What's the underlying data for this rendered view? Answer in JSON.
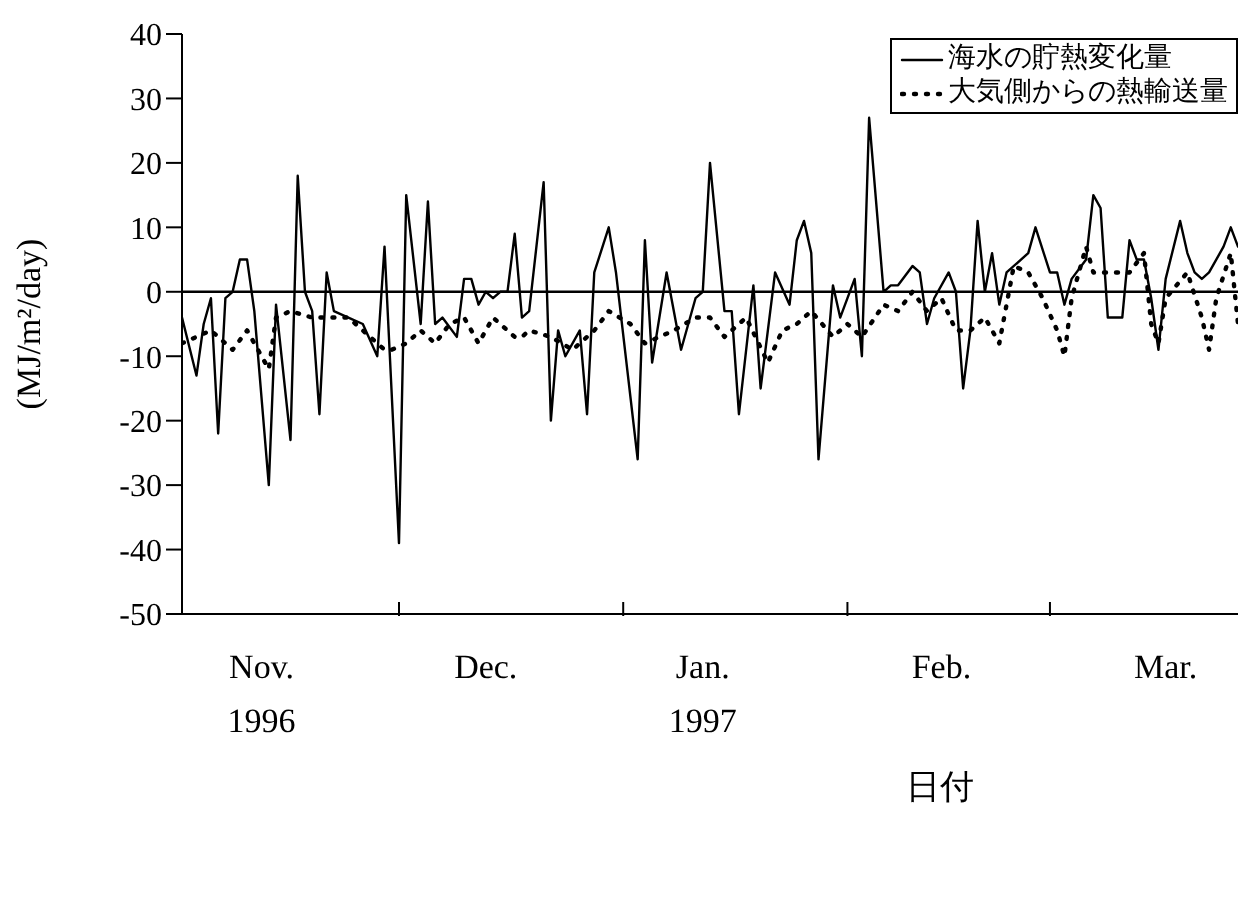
{
  "chart_data": {
    "type": "line",
    "xlabel": "日付",
    "ylabel": "(MJ/m²/day)",
    "xlim": [
      "1996-11-01",
      "1997-03-27"
    ],
    "xticks": [
      {
        "value": "1996-11-12",
        "label": "Nov.\n1996"
      },
      {
        "value": "1996-12-01",
        "label": null
      },
      {
        "value": "1996-12-13",
        "label": "Dec."
      },
      {
        "value": "1997-01-01",
        "label": null
      },
      {
        "value": "1997-01-12",
        "label": "Jan.\n1997"
      },
      {
        "value": "1997-02-01",
        "label": null
      },
      {
        "value": "1997-02-14",
        "label": "Feb."
      },
      {
        "value": "1997-03-01",
        "label": null
      },
      {
        "value": "1997-03-17",
        "label": "Mar."
      }
    ],
    "ylim": [
      -50,
      40
    ],
    "yticks": [
      -50,
      -40,
      -30,
      -20,
      -10,
      0,
      10,
      20,
      30,
      40
    ],
    "legend": "top right",
    "marker": "none",
    "ref_lines": [
      {
        "axis": "y",
        "value": 0,
        "color": "#000000",
        "line_style": "solid"
      }
    ],
    "series": [
      {
        "name": "海水の貯熱変化量",
        "color": "#000000",
        "line_style": "solid",
        "x": [
          "1996-11-01",
          "1996-11-03",
          "1996-11-04",
          "1996-11-05",
          "1996-11-06",
          "1996-11-07",
          "1996-11-08",
          "1996-11-09",
          "1996-11-10",
          "1996-11-11",
          "1996-11-13",
          "1996-11-14",
          "1996-11-16",
          "1996-11-17",
          "1996-11-18",
          "1996-11-19",
          "1996-11-20",
          "1996-11-21",
          "1996-11-22",
          "1996-11-24",
          "1996-11-26",
          "1996-11-28",
          "1996-11-29",
          "1996-12-01",
          "1996-12-02",
          "1996-12-04",
          "1996-12-05",
          "1996-12-06",
          "1996-12-07",
          "1996-12-09",
          "1996-12-10",
          "1996-12-11",
          "1996-12-12",
          "1996-12-13",
          "1996-12-14",
          "1996-12-15",
          "1996-12-16",
          "1996-12-17",
          "1996-12-18",
          "1996-12-19",
          "1996-12-21",
          "1996-12-22",
          "1996-12-23",
          "1996-12-24",
          "1996-12-26",
          "1996-12-27",
          "1996-12-28",
          "1996-12-30",
          "1996-12-31",
          "1997-01-03",
          "1997-01-04",
          "1997-01-05",
          "1997-01-07",
          "1997-01-09",
          "1997-01-11",
          "1997-01-12",
          "1997-01-13",
          "1997-01-15",
          "1997-01-16",
          "1997-01-17",
          "1997-01-19",
          "1997-01-20",
          "1997-01-22",
          "1997-01-24",
          "1997-01-25",
          "1997-01-26",
          "1997-01-27",
          "1997-01-28",
          "1997-01-30",
          "1997-01-31",
          "1997-02-02",
          "1997-02-03",
          "1997-02-04",
          "1997-02-06",
          "1997-02-07",
          "1997-02-08",
          "1997-02-10",
          "1997-02-11",
          "1997-02-12",
          "1997-02-13",
          "1997-02-15",
          "1997-02-16",
          "1997-02-17",
          "1997-02-18",
          "1997-02-19",
          "1997-02-20",
          "1997-02-21",
          "1997-02-22",
          "1997-02-23",
          "1997-02-26",
          "1997-02-27",
          "1997-03-01",
          "1997-03-02",
          "1997-03-03",
          "1997-03-04",
          "1997-03-06",
          "1997-03-07",
          "1997-03-08",
          "1997-03-09",
          "1997-03-11",
          "1997-03-12",
          "1997-03-13",
          "1997-03-14",
          "1997-03-15",
          "1997-03-16",
          "1997-03-17",
          "1997-03-19",
          "1997-03-20",
          "1997-03-21",
          "1997-03-22",
          "1997-03-23",
          "1997-03-25",
          "1997-03-26",
          "1997-03-27"
        ],
        "values": [
          -4,
          -13,
          -5,
          -1,
          -22,
          -1,
          0,
          5,
          5,
          -3,
          -30,
          -2,
          -23,
          18,
          0,
          -3,
          -19,
          3,
          -3,
          -4,
          -5,
          -10,
          7,
          -39,
          15,
          -5,
          14,
          -5,
          -4,
          -7,
          2,
          2,
          -2,
          0,
          -1,
          0,
          0,
          9,
          -4,
          -3,
          17,
          -20,
          -6,
          -10,
          -6,
          -19,
          3,
          10,
          3,
          -26,
          8,
          -11,
          3,
          -9,
          -1,
          0,
          20,
          -3,
          -3,
          -19,
          1,
          -15,
          3,
          -2,
          8,
          11,
          6,
          -26,
          1,
          -4,
          2,
          -10,
          27,
          0,
          1,
          1,
          4,
          3,
          -5,
          -1,
          3,
          0,
          -15,
          -6,
          11,
          0,
          6,
          -2,
          3,
          6,
          10,
          3,
          3,
          -2,
          2,
          5,
          15,
          13,
          -4,
          -4,
          8,
          5,
          5,
          -1,
          -9,
          2,
          11,
          6,
          3,
          2,
          3,
          7,
          10,
          7
        ]
      },
      {
        "name": "大気側からの熱輸送量",
        "color": "#000000",
        "line_style": "dotted",
        "x": [
          "1996-11-01",
          "1996-11-05",
          "1996-11-08",
          "1996-11-10",
          "1996-11-13",
          "1996-11-14",
          "1996-11-16",
          "1996-11-19",
          "1996-11-22",
          "1996-11-24",
          "1996-11-26",
          "1996-11-29",
          "1996-11-30",
          "1996-12-02",
          "1996-12-04",
          "1996-12-06",
          "1996-12-08",
          "1996-12-10",
          "1996-12-12",
          "1996-12-14",
          "1996-12-15",
          "1996-12-17",
          "1996-12-18",
          "1996-12-19",
          "1996-12-22",
          "1996-12-25",
          "1996-12-28",
          "1996-12-30",
          "1997-01-02",
          "1997-01-04",
          "1997-01-06",
          "1997-01-08",
          "1997-01-11",
          "1997-01-13",
          "1997-01-15",
          "1997-01-18",
          "1997-01-21",
          "1997-01-23",
          "1997-01-25",
          "1997-01-27",
          "1997-01-30",
          "1997-02-01",
          "1997-02-03",
          "1997-02-06",
          "1997-02-08",
          "1997-02-10",
          "1997-02-12",
          "1997-02-14",
          "1997-02-16",
          "1997-02-18",
          "1997-02-20",
          "1997-02-22",
          "1997-02-24",
          "1997-02-26",
          "1997-02-28",
          "1997-03-02",
          "1997-03-03",
          "1997-03-04",
          "1997-03-06",
          "1997-03-07",
          "1997-03-10",
          "1997-03-12",
          "1997-03-14",
          "1997-03-15",
          "1997-03-16",
          "1997-03-17",
          "1997-03-20",
          "1997-03-22",
          "1997-03-23",
          "1997-03-24",
          "1997-03-26",
          "1997-03-27"
        ],
        "values": [
          -8,
          -6,
          -9,
          -6,
          -12,
          -4,
          -3,
          -4,
          -4,
          -4,
          -6,
          -9,
          -9,
          -8,
          -6,
          -8,
          -5,
          -4,
          -8,
          -4,
          -5,
          -7,
          -7,
          -6,
          -7,
          -9,
          -6,
          -3,
          -5,
          -8,
          -7,
          -6,
          -4,
          -4,
          -7,
          -4,
          -11,
          -6,
          -5,
          -3,
          -7,
          -5,
          -7,
          -2,
          -3,
          0,
          -3,
          -1,
          -6,
          -6,
          -4,
          -8,
          4,
          3,
          -1,
          -6,
          -10,
          -1,
          7,
          3,
          3,
          3,
          6,
          -5,
          -8,
          -1,
          3,
          -4,
          -9,
          -1,
          6,
          -5
        ]
      }
    ]
  }
}
